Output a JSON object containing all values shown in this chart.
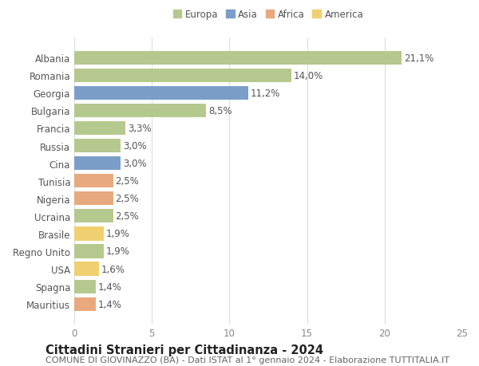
{
  "countries": [
    "Albania",
    "Romania",
    "Georgia",
    "Bulgaria",
    "Francia",
    "Russia",
    "Cina",
    "Tunisia",
    "Nigeria",
    "Ucraina",
    "Brasile",
    "Regno Unito",
    "USA",
    "Spagna",
    "Mauritius"
  ],
  "values": [
    21.1,
    14.0,
    11.2,
    8.5,
    3.3,
    3.0,
    3.0,
    2.5,
    2.5,
    2.5,
    1.9,
    1.9,
    1.6,
    1.4,
    1.4
  ],
  "labels": [
    "21,1%",
    "14,0%",
    "11,2%",
    "8,5%",
    "3,3%",
    "3,0%",
    "3,0%",
    "2,5%",
    "2,5%",
    "2,5%",
    "1,9%",
    "1,9%",
    "1,6%",
    "1,4%",
    "1,4%"
  ],
  "continents": [
    "Europa",
    "Europa",
    "Asia",
    "Europa",
    "Europa",
    "Europa",
    "Asia",
    "Africa",
    "Africa",
    "Europa",
    "America",
    "Europa",
    "America",
    "Europa",
    "Africa"
  ],
  "continent_colors": {
    "Europa": "#b5c98e",
    "Asia": "#7b9ec9",
    "Africa": "#e8a97e",
    "America": "#f0d070"
  },
  "legend_order": [
    "Europa",
    "Asia",
    "Africa",
    "America"
  ],
  "xlim": [
    0,
    25
  ],
  "xticks": [
    0,
    5,
    10,
    15,
    20,
    25
  ],
  "title": "Cittadini Stranieri per Cittadinanza - 2024",
  "subtitle": "COMUNE DI GIOVINAZZO (BA) - Dati ISTAT al 1° gennaio 2024 - Elaborazione TUTTITALIA.IT",
  "background_color": "#ffffff",
  "grid_color": "#dddddd",
  "bar_height": 0.78,
  "label_fontsize": 8.5,
  "tick_fontsize": 8.5,
  "title_fontsize": 10.5,
  "subtitle_fontsize": 8.0
}
